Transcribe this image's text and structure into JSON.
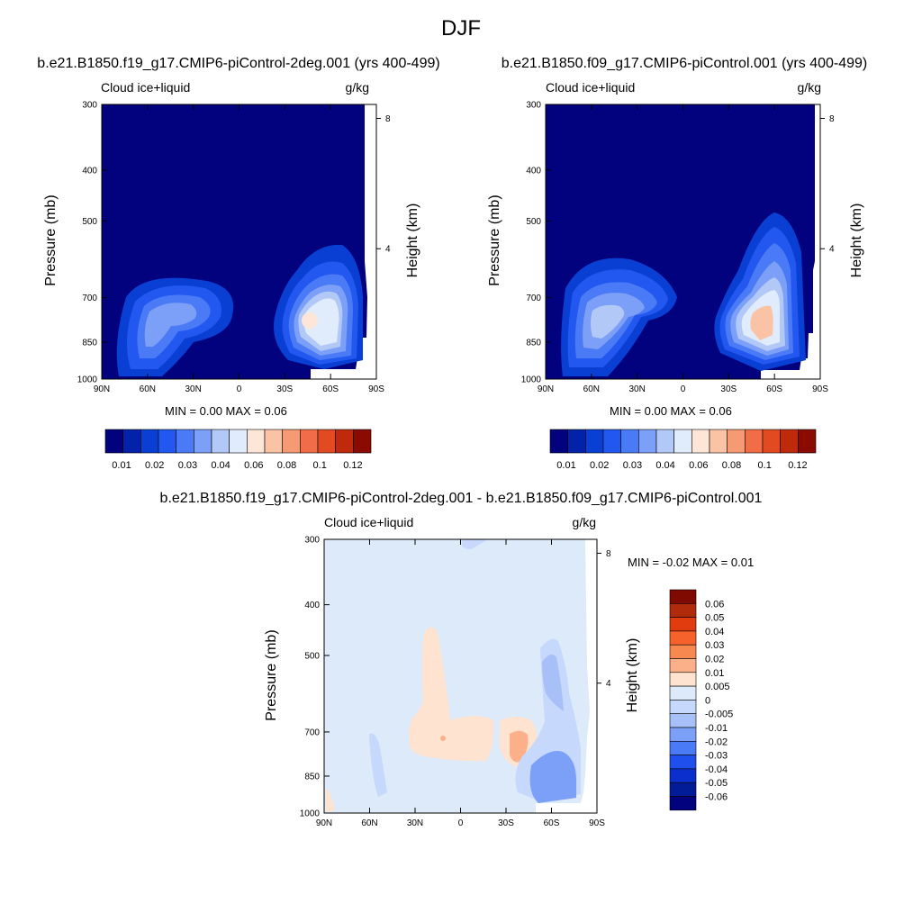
{
  "title": "DJF",
  "panels": [
    {
      "case": "b.e21.B1850.f19_g17.CMIP6-piControl-2deg.001 (yrs 400-499)",
      "variable": "Cloud ice+liquid",
      "units": "g/kg",
      "ylabel": "Pressure (mb)",
      "ylabel_right": "Height (km)",
      "minmax": "MIN =   0.00  MAX =   0.06"
    },
    {
      "case": "b.e21.B1850.f09_g17.CMIP6-piControl.001 (yrs 400-499)",
      "variable": "Cloud ice+liquid",
      "units": "g/kg",
      "ylabel": "Pressure (mb)",
      "ylabel_right": "Height (km)",
      "minmax": "MIN =   0.00  MAX =   0.06"
    },
    {
      "case": "b.e21.B1850.f19_g17.CMIP6-piControl-2deg.001 - b.e21.B1850.f09_g17.CMIP6-piControl.001",
      "variable": "Cloud ice+liquid",
      "units": "g/kg",
      "ylabel": "Pressure (mb)",
      "ylabel_right": "Height (km)",
      "minmax": "MIN =  -0.02  MAX =   0.01"
    }
  ],
  "chart_data": [
    {
      "type": "heatmap",
      "title": "b.e21.B1850.f19_g17.CMIP6-piControl-2deg.001 (yrs 400-499)",
      "variable": "Cloud ice+liquid",
      "units": "g/kg",
      "ylabel": "Pressure (mb)",
      "ylabel_right": "Height (km)",
      "x_ticks": [
        "90N",
        "60N",
        "30N",
        "0",
        "30S",
        "60S",
        "90S"
      ],
      "y_ticks": [
        300,
        400,
        500,
        700,
        850,
        1000
      ],
      "y_right_ticks": [
        8,
        4
      ],
      "xlim": [
        90,
        -90
      ],
      "ylim": [
        1000,
        300
      ],
      "colorbar_levels": [
        "0.01",
        "0.02",
        "0.03",
        "0.04",
        "0.06",
        "0.08",
        "0.1",
        "0.12"
      ],
      "min": 0.0,
      "max": 0.06,
      "features": [
        {
          "lat": -47,
          "pressure": 855,
          "value": 0.06
        },
        {
          "lat": 55,
          "pressure": 855,
          "value": 0.025
        }
      ]
    },
    {
      "type": "heatmap",
      "title": "b.e21.B1850.f09_g17.CMIP6-piControl.001 (yrs 400-499)",
      "variable": "Cloud ice+liquid",
      "units": "g/kg",
      "ylabel": "Pressure (mb)",
      "ylabel_right": "Height (km)",
      "x_ticks": [
        "90N",
        "60N",
        "30N",
        "0",
        "30S",
        "60S",
        "90S"
      ],
      "y_ticks": [
        300,
        400,
        500,
        700,
        850,
        1000
      ],
      "y_right_ticks": [
        8,
        4
      ],
      "xlim": [
        90,
        -90
      ],
      "ylim": [
        1000,
        300
      ],
      "colorbar_levels": [
        "0.01",
        "0.02",
        "0.03",
        "0.04",
        "0.06",
        "0.08",
        "0.1",
        "0.12"
      ],
      "min": 0.0,
      "max": 0.06,
      "features": [
        {
          "lat": -52,
          "pressure": 860,
          "value": 0.06
        },
        {
          "lat": 60,
          "pressure": 855,
          "value": 0.03
        }
      ]
    },
    {
      "type": "heatmap",
      "title": "b.e21.B1850.f19_g17.CMIP6-piControl-2deg.001 - b.e21.B1850.f09_g17.CMIP6-piControl.001",
      "variable": "Cloud ice+liquid",
      "units": "g/kg",
      "ylabel": "Pressure (mb)",
      "ylabel_right": "Height (km)",
      "x_ticks": [
        "90N",
        "60N",
        "30N",
        "0",
        "30S",
        "60S",
        "90S"
      ],
      "y_ticks": [
        300,
        400,
        500,
        700,
        850,
        1000
      ],
      "y_right_ticks": [
        8,
        4
      ],
      "xlim": [
        90,
        -90
      ],
      "ylim": [
        1000,
        300
      ],
      "colorbar_levels": [
        "0.06",
        "0.05",
        "0.04",
        "0.03",
        "0.02",
        "0.01",
        "0.005",
        "0",
        "-0.005",
        "-0.01",
        "-0.02",
        "-0.03",
        "-0.04",
        "-0.05",
        "-0.06"
      ],
      "min": -0.02,
      "max": 0.01,
      "features": [
        {
          "lat": 13,
          "pressure": 760,
          "value": 0.005
        },
        {
          "lat": -35,
          "pressure": 820,
          "value": 0.01
        },
        {
          "lat": -60,
          "pressure": 870,
          "value": -0.02
        },
        {
          "lat": -65,
          "pressure": 650,
          "value": -0.01
        }
      ]
    }
  ],
  "colors": {
    "pos_scale": [
      "#02027e",
      "#0222aa",
      "#0a3fd4",
      "#2358f0",
      "#4a7af5",
      "#7c9ff7",
      "#b2c9f8",
      "#e0ebfb",
      "#fde6d8",
      "#fbc3a6",
      "#f69a74",
      "#f06d48",
      "#e24a22",
      "#c02a0c",
      "#8b0a02"
    ],
    "diff_scale": [
      "#7e0a02",
      "#b02a0c",
      "#e03c10",
      "#f5622c",
      "#f68850",
      "#fbb08a",
      "#fde3d0",
      "#ddeafa",
      "#c6d8fb",
      "#a7c0f8",
      "#7c9ff7",
      "#4a7af5",
      "#1f4fec",
      "#0a2fcc",
      "#021c98",
      "#02027e"
    ]
  }
}
